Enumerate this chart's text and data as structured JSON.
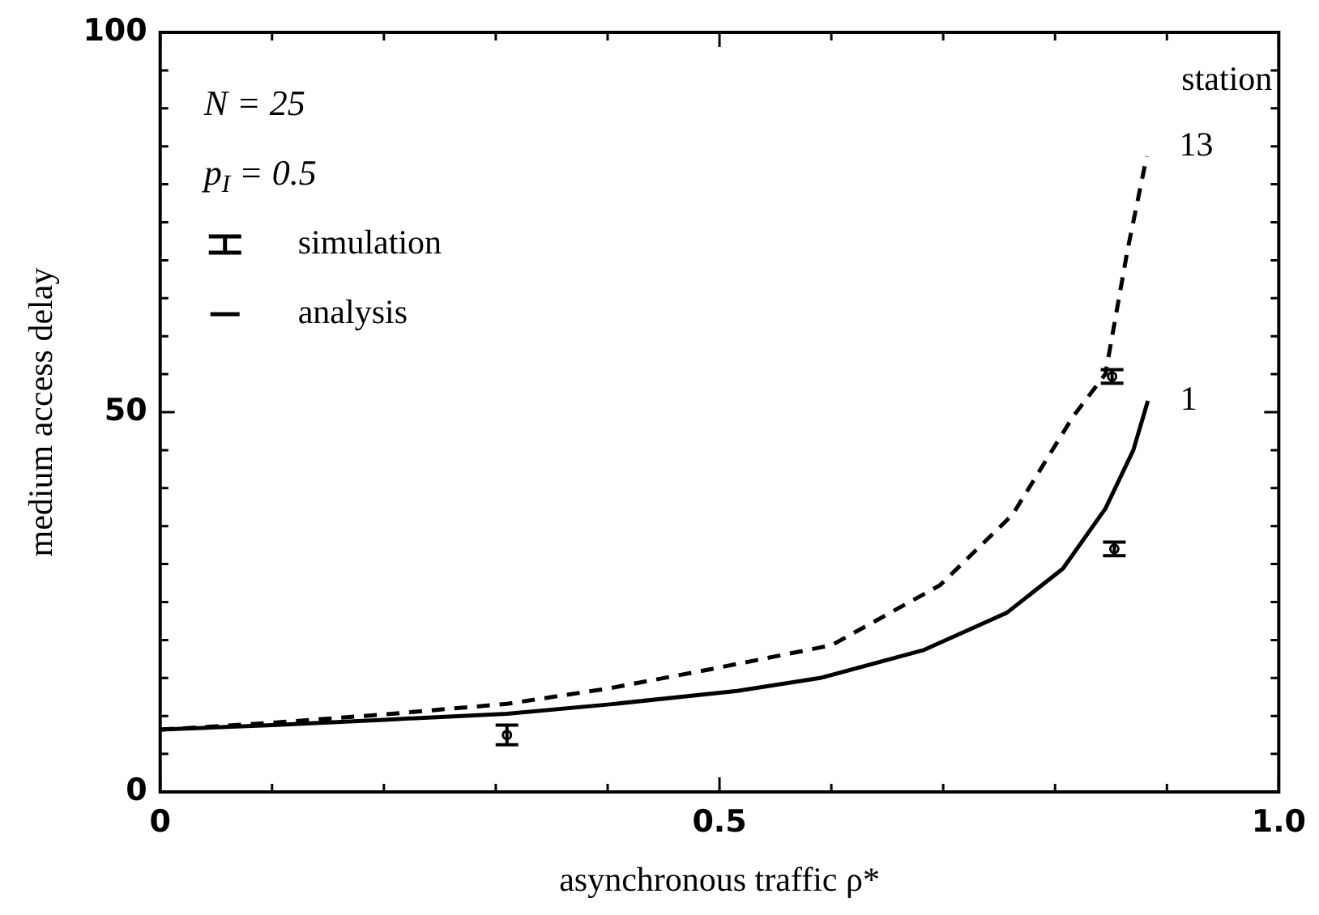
{
  "chart_data": {
    "type": "line",
    "xlabel": "asynchronous traffic ρ*",
    "ylabel": "medium access delay",
    "xlim": [
      0,
      1
    ],
    "xticks": [
      0,
      {
        "value": 0.1,
        "label": null
      },
      {
        "value": 0.2,
        "label": null
      },
      {
        "value": 0.3,
        "label": null
      },
      {
        "value": 0.4,
        "label": null
      },
      0.5,
      {
        "value": 0.6,
        "label": null
      },
      {
        "value": 0.7,
        "label": null
      },
      {
        "value": 0.8,
        "label": null
      },
      {
        "value": 0.9,
        "label": null
      },
      {
        "value": 1,
        "label": "1.0"
      }
    ],
    "ylim": [
      0,
      100
    ],
    "yticks": [
      0,
      {
        "value": 5,
        "label": null
      },
      {
        "value": 10,
        "label": null
      },
      {
        "value": 15,
        "label": null
      },
      {
        "value": 20,
        "label": null
      },
      {
        "value": 25,
        "label": null
      },
      {
        "value": 30,
        "label": null
      },
      {
        "value": 35,
        "label": null
      },
      {
        "value": 40,
        "label": null
      },
      {
        "value": 45,
        "label": null
      },
      50,
      {
        "value": 55,
        "label": null
      },
      {
        "value": 60,
        "label": null
      },
      {
        "value": 65,
        "label": null
      },
      {
        "value": 70,
        "label": null
      },
      {
        "value": 75,
        "label": null
      },
      {
        "value": 80,
        "label": null
      },
      {
        "value": 85,
        "label": null
      },
      {
        "value": 90,
        "label": null
      },
      {
        "value": 95,
        "label": null
      },
      100
    ],
    "legend": "top left",
    "marker": "none",
    "series": [
      {
        "name": "simulation",
        "type": "scatter",
        "marker": "circle",
        "color": "#000000",
        "x": [
          0.31,
          0.851,
          0.853
        ],
        "values": [
          7.5,
          54.7,
          32.0
        ],
        "errors": [
          [
            6.2,
            8.8
          ],
          [
            53.8,
            55.6
          ],
          [
            31.1,
            32.9
          ]
        ]
      },
      {
        "name": "analysis",
        "line_style": "solid",
        "color": "#000000",
        "x": [
          0,
          0.1,
          0.2,
          0.31,
          0.4,
          0.516,
          0.59,
          0.683,
          0.757,
          0.807,
          0.845,
          0.87,
          0.883
        ],
        "values": [
          8.2,
          8.8,
          9.5,
          10.3,
          11.5,
          13.3,
          15.0,
          18.7,
          23.6,
          29.4,
          37.3,
          45,
          51.5
        ]
      },
      {
        "line_style": "dashed",
        "color": "#000000",
        "x": [
          0,
          0.1,
          0.2,
          0.31,
          0.4,
          0.49,
          0.6,
          0.697,
          0.762,
          0.816,
          0.845,
          0.865,
          0.882
        ],
        "values": [
          8.2,
          9.1,
          10.2,
          11.6,
          13.6,
          16.1,
          19.3,
          27.2,
          36.5,
          49.4,
          55,
          71.5,
          83.7
        ]
      }
    ],
    "annotations": [
      "N = 25",
      "p$_{I}$ = 0.5",
      "station",
      "13",
      "1"
    ]
  }
}
